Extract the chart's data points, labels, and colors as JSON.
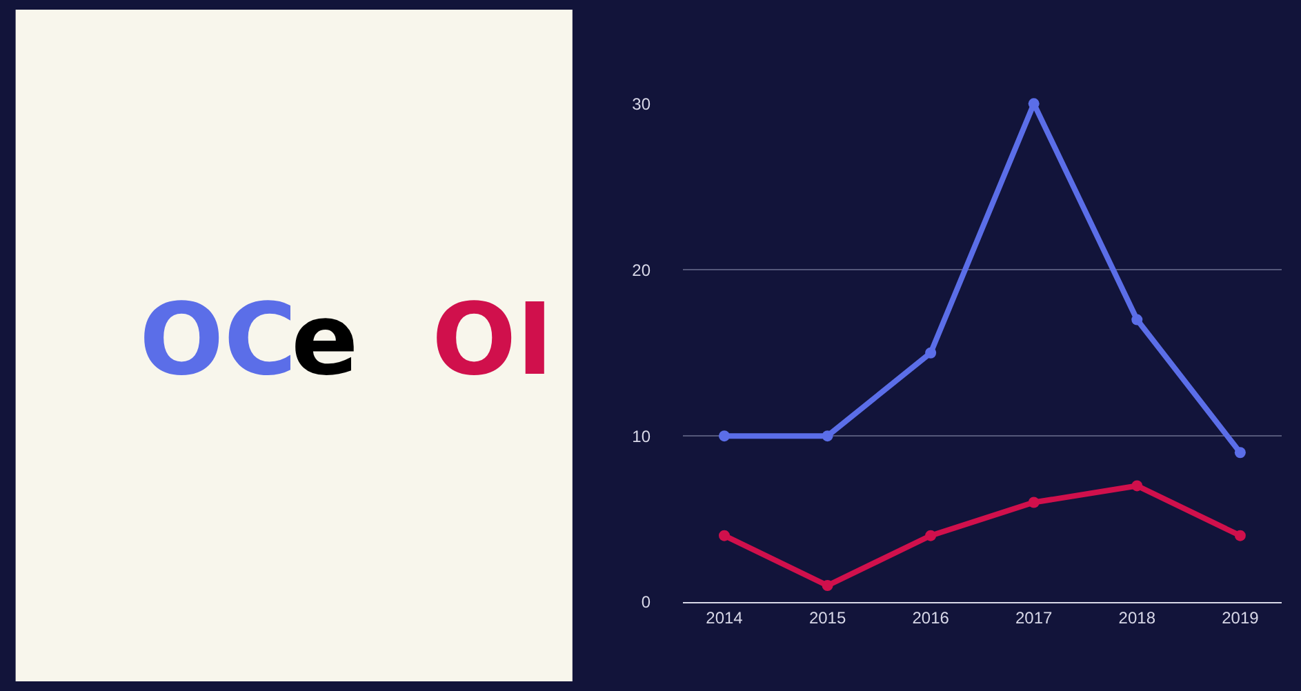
{
  "chart_data": {
    "type": "line",
    "categories": [
      "2014",
      "2015",
      "2016",
      "2017",
      "2018",
      "2019"
    ],
    "series": [
      {
        "name": "OC",
        "color": "#5b6ee8",
        "values": [
          10,
          10,
          15,
          30,
          17,
          9
        ]
      },
      {
        "name": "OI",
        "color": "#d0104c",
        "values": [
          4,
          1,
          4,
          6,
          7,
          4
        ]
      }
    ],
    "annotations": [
      "e"
    ],
    "ylim": [
      0,
      30
    ],
    "yticks": [
      0,
      10,
      20,
      30
    ],
    "grid": "y",
    "marker": "circle"
  }
}
